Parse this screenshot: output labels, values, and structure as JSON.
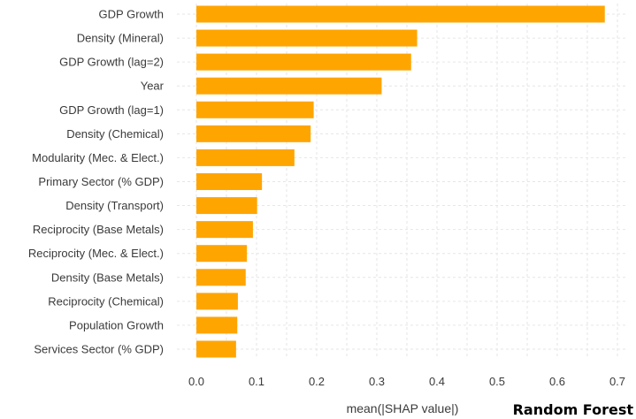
{
  "chart_data": {
    "type": "bar",
    "orientation": "horizontal",
    "categories": [
      "GDP Growth",
      "Density (Mineral)",
      "GDP Growth (lag=2)",
      "Year",
      "GDP Growth (lag=1)",
      "Density (Chemical)",
      "Modularity (Mec. & Elect.)",
      "Primary Sector (% GDP)",
      "Density (Transport)",
      "Reciprocity (Base Metals)",
      "Reciprocity (Mec. & Elect.)",
      "Density (Base Metals)",
      "Reciprocity (Chemical)",
      "Population Growth",
      "Services Sector (% GDP)"
    ],
    "values": [
      0.679,
      0.367,
      0.357,
      0.308,
      0.195,
      0.19,
      0.163,
      0.109,
      0.101,
      0.094,
      0.084,
      0.082,
      0.069,
      0.068,
      0.066
    ],
    "xlabel": "mean(|SHAP value|)",
    "ylabel": "",
    "xlim": [
      -0.03,
      0.71
    ],
    "xticks": [
      "0.0",
      "0.1",
      "0.2",
      "0.3",
      "0.4",
      "0.5",
      "0.6",
      "0.7"
    ],
    "grid": true,
    "bar_color": "#ffa500"
  },
  "model_label": "Random Forest"
}
